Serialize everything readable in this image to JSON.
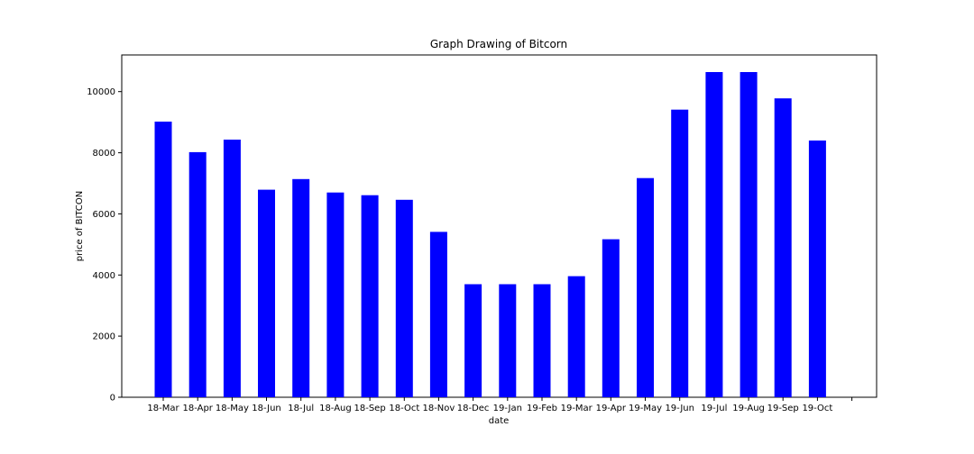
{
  "chart_data": {
    "type": "bar",
    "title": "Graph Drawing of Bitcorn",
    "xlabel": "date",
    "ylabel": "price of BITCON",
    "categories": [
      "18-Mar",
      "18-Apr",
      "18-May",
      "18-Jun",
      "18-Jul",
      "18-Aug",
      "18-Sep",
      "18-Oct",
      "18-Nov",
      "18-Dec",
      "19-Jan",
      "19-Feb",
      "19-Mar",
      "19-Apr",
      "19-May",
      "19-Jun",
      "19-Jul",
      "19-Aug",
      "19-Sep",
      "19-Oct"
    ],
    "values": [
      9020,
      8020,
      8430,
      6790,
      7140,
      6700,
      6610,
      6460,
      5410,
      3700,
      3700,
      3700,
      3960,
      5170,
      7170,
      9410,
      10640,
      10640,
      9780,
      8400
    ],
    "ylim": [
      0,
      11200
    ],
    "yticks": [
      0,
      2000,
      4000,
      6000,
      8000,
      10000
    ],
    "ytick_labels": [
      "0",
      "2000",
      "4000",
      "6000",
      "8000",
      "10000"
    ],
    "bar_color": "#0000ff",
    "grid": false,
    "legend": "none"
  }
}
